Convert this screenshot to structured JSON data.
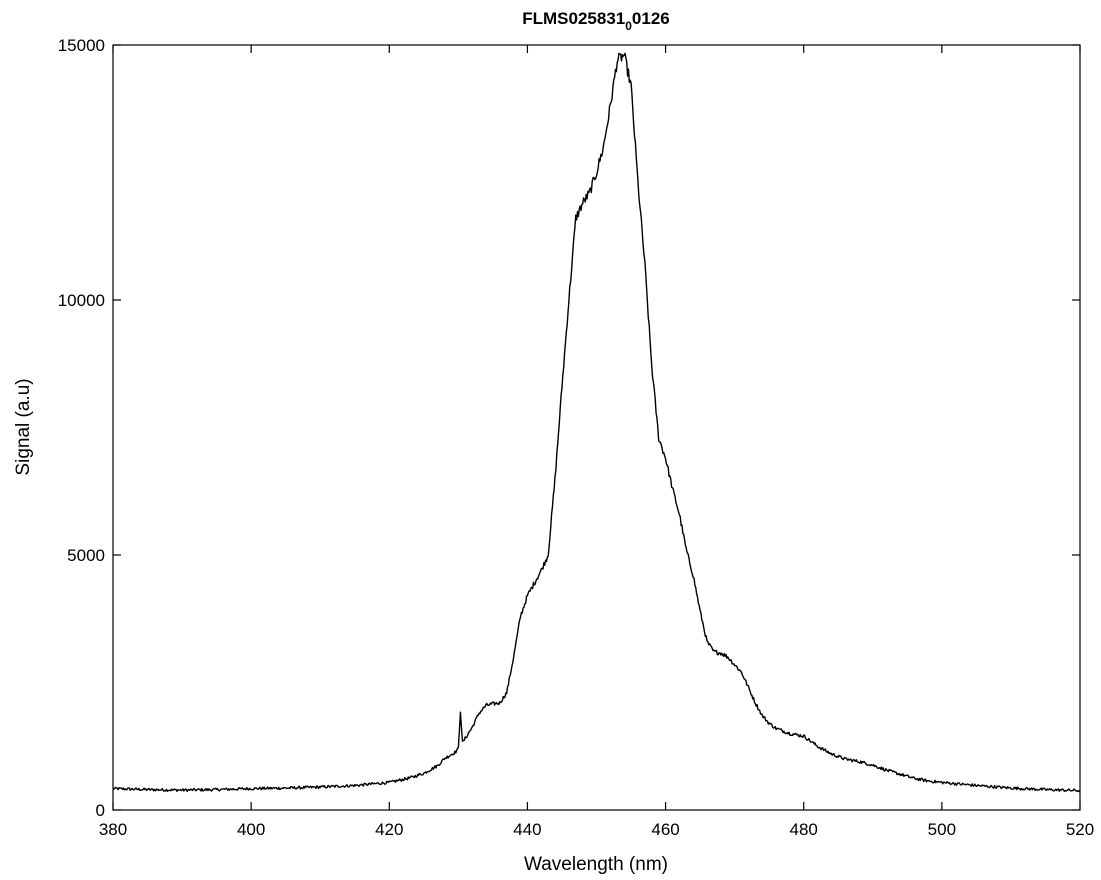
{
  "chart_data": {
    "type": "line",
    "title_main": "FLMS025831",
    "title_sub": "0",
    "title_end": "0126",
    "xlabel": "Wavelength (nm)",
    "ylabel": "Signal (a.u)",
    "xlim": [
      380,
      520
    ],
    "ylim": [
      0,
      15000
    ],
    "xticks": [
      "380",
      "400",
      "420",
      "440",
      "460",
      "480",
      "500",
      "520"
    ],
    "yticks": [
      "0",
      "5000",
      "10000",
      "15000"
    ],
    "grid": false,
    "line_color": "#000000",
    "series": [
      {
        "x": [
          380,
          385,
          390,
          395,
          400,
          405,
          410,
          415,
          420,
          423,
          425,
          427,
          428,
          429.5,
          430,
          430.3,
          430.6,
          432,
          433,
          434,
          435,
          436,
          437,
          438,
          439,
          440,
          441,
          442,
          443,
          444,
          445,
          446,
          447,
          448,
          449,
          450,
          451,
          452,
          453,
          454,
          455,
          456,
          457,
          458,
          459,
          460,
          461,
          462,
          463,
          464,
          465,
          466,
          467,
          468,
          469,
          470,
          471,
          472,
          473,
          474,
          475,
          476,
          478,
          480,
          482,
          484,
          486,
          488,
          490,
          492,
          494,
          496,
          498,
          500,
          505,
          510,
          515,
          520
        ],
        "y": [
          420,
          400,
          390,
          400,
          420,
          430,
          450,
          480,
          540,
          630,
          720,
          870,
          1010,
          1130,
          1200,
          1950,
          1320,
          1620,
          1900,
          2050,
          2080,
          2100,
          2300,
          3000,
          3800,
          4200,
          4450,
          4700,
          5000,
          6500,
          8300,
          10000,
          11600,
          11900,
          12100,
          12500,
          13000,
          13800,
          14700,
          14800,
          14200,
          12300,
          10700,
          8700,
          7300,
          6900,
          6300,
          5800,
          5100,
          4600,
          3900,
          3300,
          3100,
          3080,
          3000,
          2850,
          2700,
          2400,
          2100,
          1850,
          1700,
          1600,
          1500,
          1450,
          1250,
          1100,
          1000,
          950,
          880,
          780,
          700,
          620,
          570,
          540,
          480,
          430,
          400,
          380
        ]
      }
    ]
  }
}
